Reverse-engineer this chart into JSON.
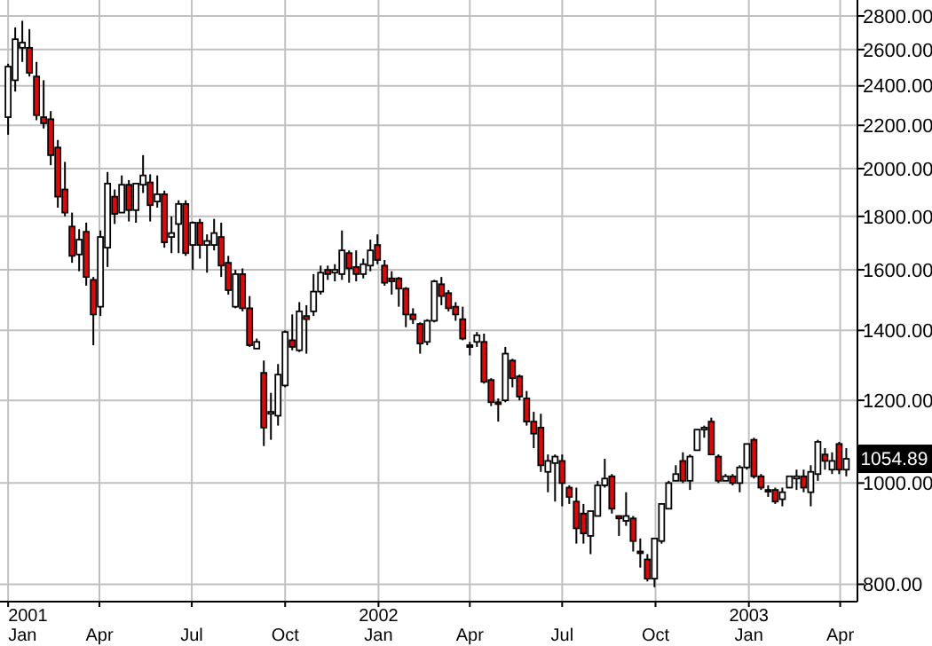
{
  "chart_data": {
    "type": "candlestick",
    "log": true,
    "grid": true,
    "xlim": [
      "2000-12-24",
      "2003-04-18"
    ],
    "xticks": [
      {
        "value": "2001-01-01",
        "label": "2001\nJan"
      },
      {
        "value": "2001-04-01",
        "label": "Apr"
      },
      {
        "value": "2001-07-01",
        "label": "Jul"
      },
      {
        "value": "2001-10-01",
        "label": "Oct"
      },
      {
        "value": "2002-01-01",
        "label": "2002\nJan"
      },
      {
        "value": "2002-04-01",
        "label": "Apr"
      },
      {
        "value": "2002-07-01",
        "label": "Jul"
      },
      {
        "value": "2002-10-01",
        "label": "Oct"
      },
      {
        "value": "2003-01-01",
        "label": "2003\nJan"
      },
      {
        "value": "2003-04-01",
        "label": "Apr"
      }
    ],
    "ylim": [
      770,
      2900
    ],
    "yticks": [
      {
        "value": 800,
        "label": "800.00"
      },
      {
        "value": 1000,
        "label": "1000.00"
      },
      {
        "value": 1200,
        "label": "1200.00"
      },
      {
        "value": 1400,
        "label": "1400.00"
      },
      {
        "value": 1600,
        "label": "1600.00"
      },
      {
        "value": 1800,
        "label": "1800.00"
      },
      {
        "value": 2000,
        "label": "2000.00"
      },
      {
        "value": 2200,
        "label": "2200.00"
      },
      {
        "value": 2400,
        "label": "2400.00"
      },
      {
        "value": 2600,
        "label": "2600.00"
      },
      {
        "value": 2800,
        "label": "2800.00"
      }
    ],
    "annotations": [
      {
        "text": "1054.89",
        "x": "2003-04-07",
        "y": 1054.89
      }
    ],
    "x": [
      "2001-01-01",
      "2001-01-08",
      "2001-01-15",
      "2001-01-22",
      "2001-01-29",
      "2001-02-05",
      "2001-02-12",
      "2001-02-19",
      "2001-02-26",
      "2001-03-05",
      "2001-03-12",
      "2001-03-19",
      "2001-03-26",
      "2001-04-02",
      "2001-04-09",
      "2001-04-16",
      "2001-04-23",
      "2001-04-30",
      "2001-05-07",
      "2001-05-14",
      "2001-05-21",
      "2001-05-28",
      "2001-06-04",
      "2001-06-11",
      "2001-06-18",
      "2001-06-25",
      "2001-07-02",
      "2001-07-09",
      "2001-07-16",
      "2001-07-23",
      "2001-07-30",
      "2001-08-06",
      "2001-08-13",
      "2001-08-20",
      "2001-08-27",
      "2001-09-03",
      "2001-09-10",
      "2001-09-17",
      "2001-09-24",
      "2001-10-01",
      "2001-10-08",
      "2001-10-15",
      "2001-10-22",
      "2001-10-29",
      "2001-11-05",
      "2001-11-12",
      "2001-11-19",
      "2001-11-26",
      "2001-12-03",
      "2001-12-10",
      "2001-12-17",
      "2001-12-24",
      "2001-12-31",
      "2002-01-07",
      "2002-01-14",
      "2002-01-21",
      "2002-01-28",
      "2002-02-04",
      "2002-02-11",
      "2002-02-18",
      "2002-02-25",
      "2002-03-04",
      "2002-03-11",
      "2002-03-18",
      "2002-03-25",
      "2002-04-01",
      "2002-04-08",
      "2002-04-15",
      "2002-04-22",
      "2002-04-29",
      "2002-05-06",
      "2002-05-13",
      "2002-05-20",
      "2002-05-27",
      "2002-06-03",
      "2002-06-10",
      "2002-06-17",
      "2002-06-24",
      "2002-07-01",
      "2002-07-08",
      "2002-07-15",
      "2002-07-22",
      "2002-07-29",
      "2002-08-05",
      "2002-08-12",
      "2002-08-19",
      "2002-08-26",
      "2002-09-02",
      "2002-09-09",
      "2002-09-16",
      "2002-09-23",
      "2002-09-30",
      "2002-10-07",
      "2002-10-14",
      "2002-10-21",
      "2002-10-28",
      "2002-11-04",
      "2002-11-11",
      "2002-11-18",
      "2002-11-25",
      "2002-12-02",
      "2002-12-09",
      "2002-12-16",
      "2002-12-23",
      "2002-12-30",
      "2003-01-06",
      "2003-01-13",
      "2003-01-20",
      "2003-01-27",
      "2003-02-03",
      "2003-02-10",
      "2003-02-17",
      "2003-02-24",
      "2003-03-03",
      "2003-03-10",
      "2003-03-17",
      "2003-03-24",
      "2003-03-31",
      "2003-04-07"
    ],
    "ohlc": [
      [
        2240,
        2520,
        2155,
        2504
      ],
      [
        2430,
        2730,
        2370,
        2660
      ],
      [
        2610,
        2770,
        2530,
        2640
      ],
      [
        2610,
        2720,
        2450,
        2470
      ],
      [
        2450,
        2530,
        2225,
        2250
      ],
      [
        2240,
        2430,
        2185,
        2210
      ],
      [
        2230,
        2270,
        2015,
        2060
      ],
      [
        2095,
        2130,
        1835,
        1880
      ],
      [
        1910,
        2030,
        1800,
        1815
      ],
      [
        1760,
        1815,
        1625,
        1650
      ],
      [
        1655,
        1750,
        1595,
        1710
      ],
      [
        1740,
        1775,
        1545,
        1575
      ],
      [
        1565,
        1575,
        1355,
        1450
      ],
      [
        1475,
        1745,
        1445,
        1720
      ],
      [
        1680,
        1985,
        1610,
        1935
      ],
      [
        1880,
        1910,
        1770,
        1810
      ],
      [
        1815,
        1970,
        1815,
        1930
      ],
      [
        1930,
        1950,
        1780,
        1825
      ],
      [
        1825,
        1935,
        1775,
        1935
      ],
      [
        1930,
        2060,
        1895,
        1970
      ],
      [
        1940,
        1975,
        1780,
        1845
      ],
      [
        1860,
        1970,
        1835,
        1890
      ],
      [
        1890,
        1905,
        1680,
        1700
      ],
      [
        1720,
        1800,
        1660,
        1735
      ],
      [
        1770,
        1865,
        1660,
        1850
      ],
      [
        1850,
        1865,
        1650,
        1660
      ],
      [
        1690,
        1780,
        1600,
        1775
      ],
      [
        1775,
        1790,
        1640,
        1690
      ],
      [
        1690,
        1730,
        1590,
        1705
      ],
      [
        1690,
        1790,
        1670,
        1735
      ],
      [
        1720,
        1775,
        1575,
        1615
      ],
      [
        1625,
        1650,
        1515,
        1530
      ],
      [
        1475,
        1600,
        1470,
        1585
      ],
      [
        1585,
        1605,
        1460,
        1470
      ],
      [
        1470,
        1510,
        1350,
        1355
      ],
      [
        1345,
        1375,
        1345,
        1365
      ],
      [
        1275,
        1310,
        1085,
        1130
      ],
      [
        1165,
        1220,
        1100,
        1170
      ],
      [
        1160,
        1300,
        1135,
        1270
      ],
      [
        1240,
        1400,
        1235,
        1395
      ],
      [
        1370,
        1450,
        1340,
        1350
      ],
      [
        1340,
        1490,
        1335,
        1460
      ],
      [
        1445,
        1480,
        1330,
        1435
      ],
      [
        1460,
        1585,
        1445,
        1525
      ],
      [
        1525,
        1615,
        1515,
        1590
      ],
      [
        1600,
        1615,
        1565,
        1585
      ],
      [
        1590,
        1620,
        1560,
        1600
      ],
      [
        1585,
        1745,
        1565,
        1670
      ],
      [
        1660,
        1670,
        1555,
        1605
      ],
      [
        1610,
        1670,
        1560,
        1585
      ],
      [
        1585,
        1640,
        1570,
        1620
      ],
      [
        1615,
        1710,
        1595,
        1670
      ],
      [
        1690,
        1730,
        1620,
        1635
      ],
      [
        1615,
        1635,
        1545,
        1555
      ],
      [
        1570,
        1595,
        1515,
        1560
      ],
      [
        1570,
        1575,
        1475,
        1535
      ],
      [
        1535,
        1540,
        1410,
        1450
      ],
      [
        1450,
        1470,
        1420,
        1435
      ],
      [
        1420,
        1425,
        1330,
        1360
      ],
      [
        1365,
        1435,
        1355,
        1430
      ],
      [
        1430,
        1565,
        1425,
        1560
      ],
      [
        1550,
        1575,
        1480,
        1510
      ],
      [
        1520,
        1530,
        1460,
        1470
      ],
      [
        1475,
        1490,
        1430,
        1450
      ],
      [
        1435,
        1475,
        1370,
        1375
      ],
      [
        1355,
        1365,
        1325,
        1350
      ],
      [
        1365,
        1395,
        1350,
        1385
      ],
      [
        1365,
        1390,
        1245,
        1250
      ],
      [
        1255,
        1260,
        1185,
        1195
      ],
      [
        1195,
        1205,
        1145,
        1190
      ],
      [
        1200,
        1350,
        1195,
        1330
      ],
      [
        1310,
        1315,
        1235,
        1260
      ],
      [
        1265,
        1270,
        1200,
        1210
      ],
      [
        1205,
        1225,
        1135,
        1145
      ],
      [
        1145,
        1170,
        1080,
        1115
      ],
      [
        1130,
        1165,
        1025,
        1040
      ],
      [
        1025,
        1065,
        980,
        1050
      ],
      [
        1045,
        1065,
        960,
        1060
      ],
      [
        1050,
        1065,
        950,
        1000
      ],
      [
        990,
        995,
        955,
        970
      ],
      [
        960,
        990,
        875,
        905
      ],
      [
        935,
        955,
        875,
        895
      ],
      [
        890,
        940,
        855,
        940
      ],
      [
        930,
        1005,
        930,
        995
      ],
      [
        995,
        1055,
        990,
        1010
      ],
      [
        1015,
        1020,
        935,
        945
      ],
      [
        930,
        930,
        890,
        925
      ],
      [
        920,
        980,
        910,
        930
      ],
      [
        925,
        930,
        860,
        880
      ],
      [
        860,
        885,
        830,
        858
      ],
      [
        845,
        855,
        805,
        810
      ],
      [
        810,
        885,
        795,
        885
      ],
      [
        880,
        955,
        875,
        955
      ],
      [
        945,
        1005,
        945,
        1000
      ],
      [
        1005,
        1040,
        1005,
        1020
      ],
      [
        1050,
        1070,
        1000,
        1005
      ],
      [
        1005,
        1065,
        985,
        1060
      ],
      [
        1075,
        1125,
        1075,
        1125
      ],
      [
        1125,
        1135,
        1105,
        1130
      ],
      [
        1145,
        1155,
        1065,
        1065
      ],
      [
        1060,
        1065,
        1000,
        1005
      ],
      [
        1005,
        1020,
        1005,
        1015
      ],
      [
        1015,
        1020,
        995,
        1000
      ],
      [
        1000,
        1040,
        980,
        1035
      ],
      [
        1035,
        1090,
        1030,
        1090
      ],
      [
        1100,
        1105,
        1010,
        1015
      ],
      [
        1015,
        1020,
        985,
        990
      ],
      [
        985,
        995,
        970,
        983
      ],
      [
        985,
        990,
        955,
        960
      ],
      [
        965,
        990,
        950,
        980
      ],
      [
        990,
        1015,
        990,
        1015
      ],
      [
        1010,
        1030,
        985,
        1015
      ],
      [
        1015,
        1030,
        980,
        990
      ],
      [
        980,
        1040,
        950,
        1025
      ],
      [
        1020,
        1100,
        1005,
        1095
      ],
      [
        1065,
        1080,
        1030,
        1050
      ],
      [
        1030,
        1070,
        1020,
        1050
      ],
      [
        1090,
        1095,
        1020,
        1030
      ],
      [
        1030,
        1080,
        1015,
        1054.89
      ]
    ]
  }
}
